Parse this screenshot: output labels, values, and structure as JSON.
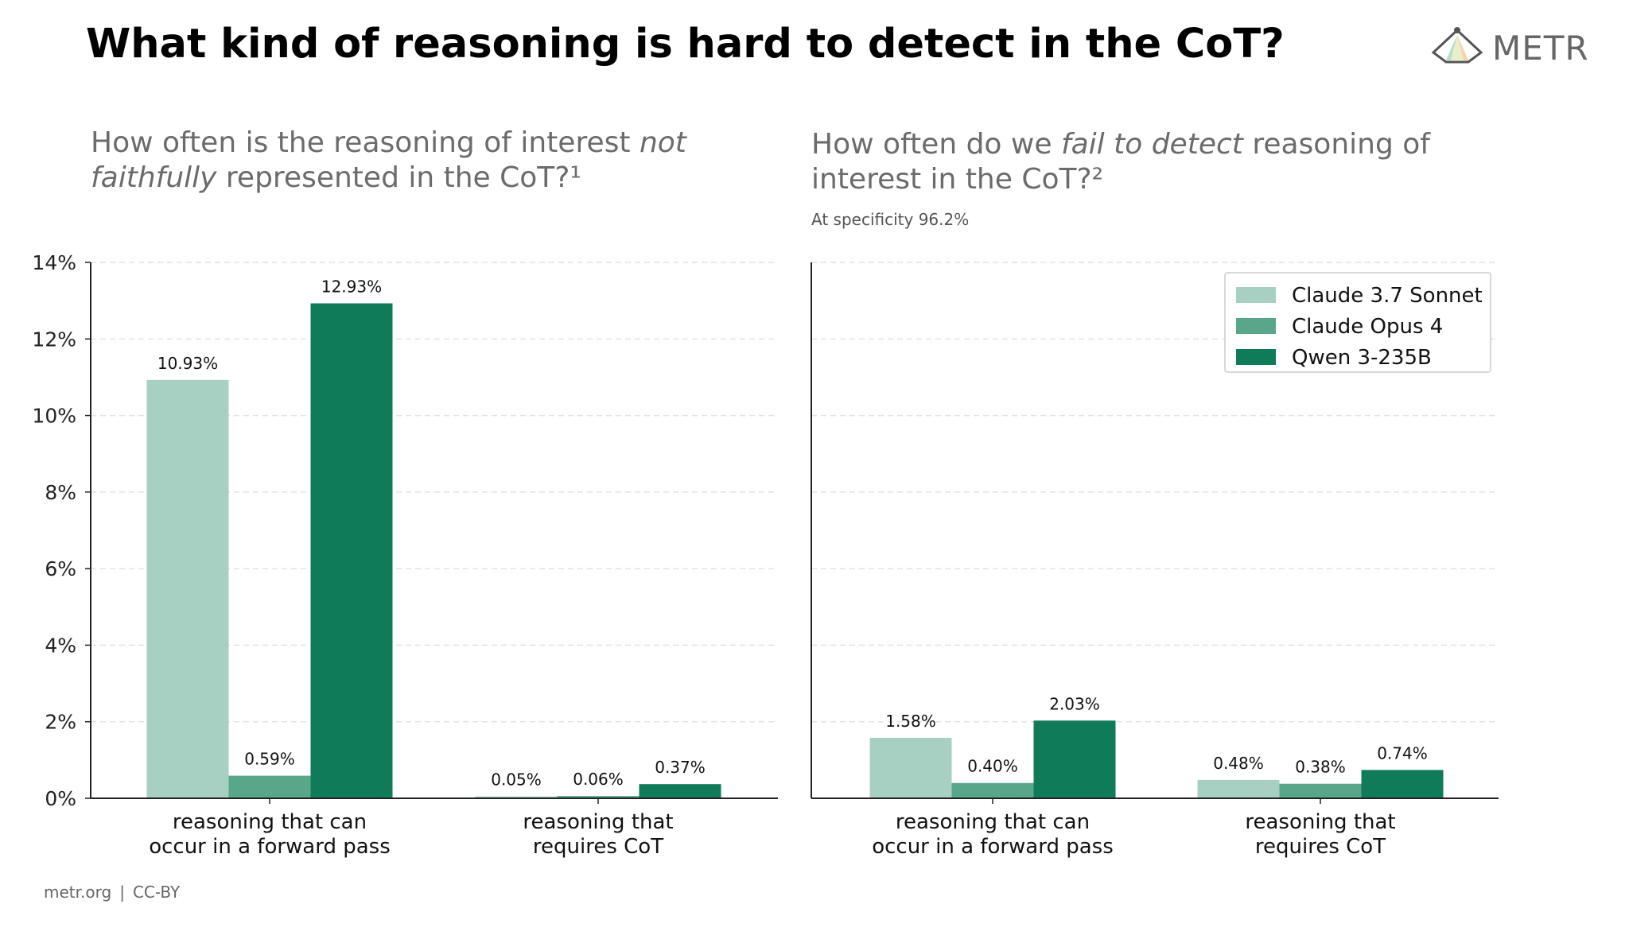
{
  "header": {
    "title": "What kind of reasoning is hard to detect in the CoT?",
    "logo_text": "METR"
  },
  "footer": {
    "site": "metr.org",
    "separator": "|",
    "license": "CC-BY"
  },
  "colors": {
    "sonnet": "#a8d0c2",
    "opus": "#5aa68a",
    "qwen": "#0f7b59",
    "grid": "#e3e3e3",
    "axis": "#222222"
  },
  "chart_data": [
    {
      "type": "bar",
      "subtitle_parts": [
        {
          "text": "How often is the reasoning of interest ",
          "italic": false
        },
        {
          "text": "not faithfully",
          "italic": true
        },
        {
          "text": " represented in the CoT?¹",
          "italic": false
        }
      ],
      "categories": [
        [
          "reasoning that can",
          "occur in a forward pass"
        ],
        [
          "reasoning that",
          "requires CoT"
        ]
      ],
      "series": [
        {
          "name": "Claude 3.7 Sonnet",
          "values": [
            10.93,
            0.05
          ],
          "labels": [
            "10.93%",
            "0.05%"
          ]
        },
        {
          "name": "Claude Opus 4",
          "values": [
            0.59,
            0.06
          ],
          "labels": [
            "0.59%",
            "0.06%"
          ]
        },
        {
          "name": "Qwen 3-235B",
          "values": [
            12.93,
            0.37
          ],
          "labels": [
            "12.93%",
            "0.37%"
          ]
        }
      ],
      "ylim": [
        0,
        14
      ],
      "yticks": [
        "0%",
        "2%",
        "4%",
        "6%",
        "8%",
        "10%",
        "12%",
        "14%"
      ],
      "show_y_tick_labels": true,
      "grid": true
    },
    {
      "type": "bar",
      "subtitle_parts": [
        {
          "text": "How often do we ",
          "italic": false
        },
        {
          "text": "fail to detect",
          "italic": true
        },
        {
          "text": " reasoning of interest in the CoT?²",
          "italic": false
        }
      ],
      "note": "At specificity 96.2%",
      "categories": [
        [
          "reasoning that can",
          "occur in a forward pass"
        ],
        [
          "reasoning that",
          "requires CoT"
        ]
      ],
      "series": [
        {
          "name": "Claude 3.7 Sonnet",
          "values": [
            1.58,
            0.48
          ],
          "labels": [
            "1.58%",
            "0.48%"
          ]
        },
        {
          "name": "Claude Opus 4",
          "values": [
            0.4,
            0.38
          ],
          "labels": [
            "0.40%",
            "0.38%"
          ]
        },
        {
          "name": "Qwen 3-235B",
          "values": [
            2.03,
            0.74
          ],
          "labels": [
            "2.03%",
            "0.74%"
          ]
        }
      ],
      "ylim": [
        0,
        14
      ],
      "show_y_tick_labels": false,
      "grid": true,
      "legend": {
        "placement": "top-right",
        "entries": [
          "Claude 3.7 Sonnet",
          "Claude Opus 4",
          "Qwen 3-235B"
        ]
      }
    }
  ]
}
